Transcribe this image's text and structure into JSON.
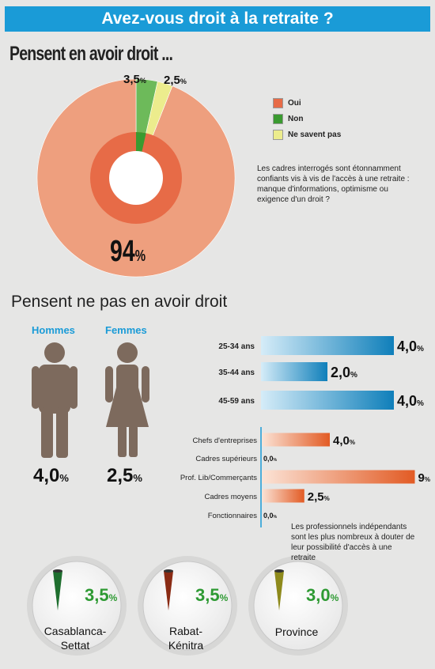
{
  "header": {
    "banner": "Avez-vous droit à la retraite ?"
  },
  "section1": {
    "title": "Pensent en avoir droit  ...",
    "description": "Les cadres interrogés sont étonnamment confiants vis à vis de l'accès à une retraite : manque d'informations, optimisme  ou exigence d'un droit ?"
  },
  "section2": {
    "title": "Pensent ne pas en avoir droit",
    "note": "Les professionnels indépendants sont les plus nombreux à douter de leur possibilité d'accès à une retraite"
  },
  "colors": {
    "oui": "#ee9f7e",
    "oui_inner": "#e76b47",
    "non": "#6dba5a",
    "nsp": "#ecec8d",
    "blue": "#1a9bd7",
    "orange": "#e8672e",
    "green_text": "#2e9a33"
  },
  "chart_data": [
    {
      "type": "pie",
      "categories": [
        "Oui",
        "Non",
        "Ne savent pas"
      ],
      "values": [
        94,
        3.5,
        2.5
      ],
      "labels": [
        "94",
        "3,5",
        "2,5"
      ],
      "unit": "%",
      "legend": "right"
    },
    {
      "type": "bar",
      "categories": [
        "Hommes",
        "Femmes"
      ],
      "values": [
        4.0,
        2.5
      ],
      "labels": [
        "4,0",
        "2,5"
      ],
      "unit": "%"
    },
    {
      "type": "bar",
      "orientation": "horizontal",
      "categories": [
        "25-34 ans",
        "35-44 ans",
        "45-59 ans"
      ],
      "values": [
        4.0,
        2.0,
        4.0
      ],
      "labels": [
        "4,0",
        "2,0",
        "4,0"
      ],
      "unit": "%"
    },
    {
      "type": "bar",
      "orientation": "horizontal",
      "categories": [
        "Chefs d'entreprises",
        "Cadres supérieurs",
        "Prof. Lib/Commerçants",
        "Cadres moyens",
        "Fonctionnaires"
      ],
      "values": [
        4.0,
        0.0,
        9,
        2.5,
        0.0
      ],
      "labels": [
        "4,0",
        "0,0",
        "9",
        "2,5",
        "0,0"
      ],
      "unit": "%"
    },
    {
      "type": "bar",
      "categories": [
        "Casablanca-Settat",
        "Rabat-Kénitra",
        "Province"
      ],
      "values": [
        3.5,
        3.5,
        3.0
      ],
      "labels": [
        "3,5",
        "3,5",
        "3,0"
      ],
      "label_lines": [
        [
          "Casablanca-",
          "Settat"
        ],
        [
          "Rabat-",
          "Kénitra"
        ],
        [
          "Province"
        ]
      ],
      "unit": "%"
    }
  ]
}
